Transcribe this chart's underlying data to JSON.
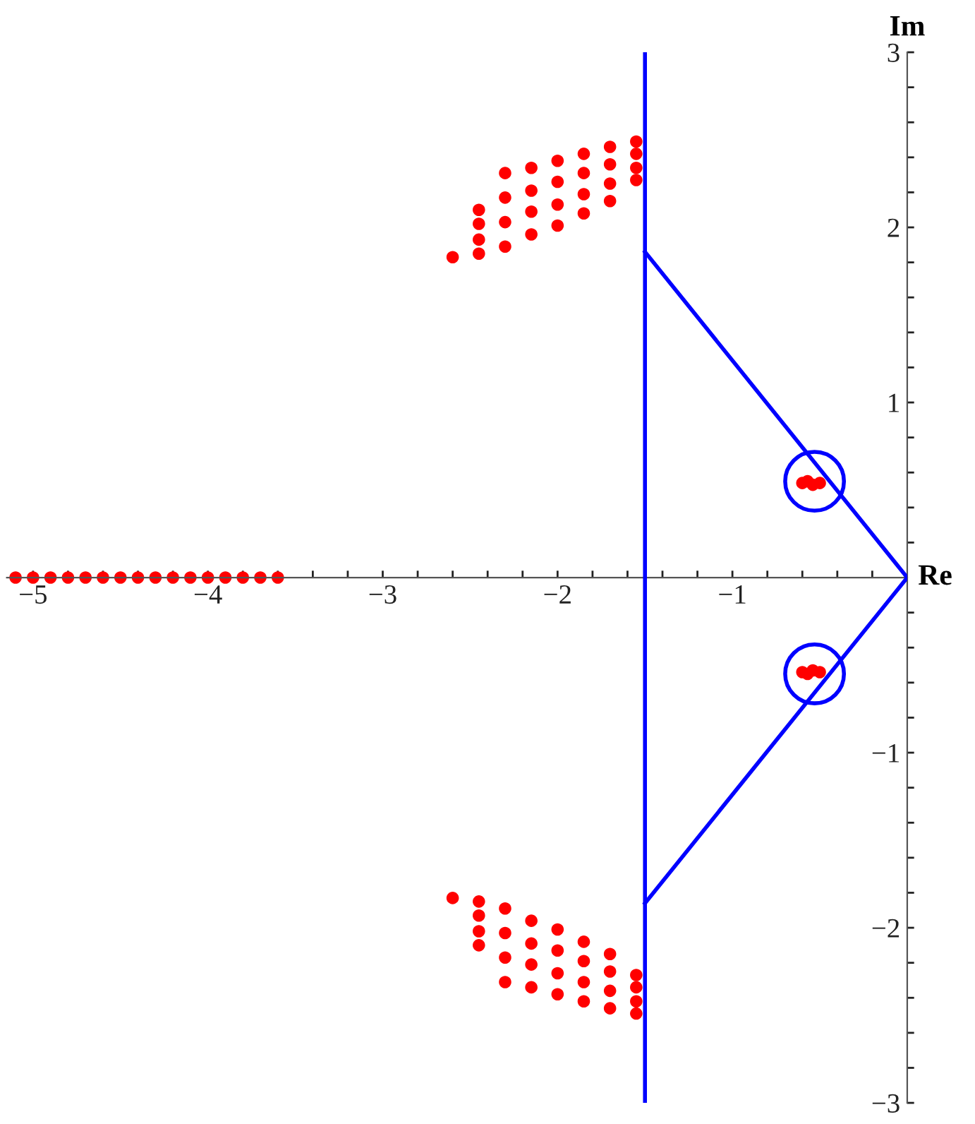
{
  "chart_data": {
    "type": "scatter",
    "xlabel": "Re",
    "ylabel": "Im",
    "xlim": [
      -5.15,
      0
    ],
    "ylim": [
      -3,
      3
    ],
    "xticks": [
      {
        "value": -5,
        "label": "−5"
      },
      {
        "value": -4.8,
        "label": null
      },
      {
        "value": -4.6,
        "label": null
      },
      {
        "value": -4.4,
        "label": null
      },
      {
        "value": -4.2,
        "label": null
      },
      {
        "value": -4,
        "label": "−4"
      },
      {
        "value": -3.8,
        "label": null
      },
      {
        "value": -3.6,
        "label": null
      },
      {
        "value": -3.4,
        "label": null
      },
      {
        "value": -3.2,
        "label": null
      },
      {
        "value": -3,
        "label": "−3"
      },
      {
        "value": -2.8,
        "label": null
      },
      {
        "value": -2.6,
        "label": null
      },
      {
        "value": -2.4,
        "label": null
      },
      {
        "value": -2.2,
        "label": null
      },
      {
        "value": -2,
        "label": "−2"
      },
      {
        "value": -1.8,
        "label": null
      },
      {
        "value": -1.6,
        "label": null
      },
      {
        "value": -1.4,
        "label": null
      },
      {
        "value": -1.2,
        "label": null
      },
      {
        "value": -1,
        "label": "−1"
      },
      {
        "value": -0.8,
        "label": null
      },
      {
        "value": -0.6,
        "label": null
      },
      {
        "value": -0.4,
        "label": null
      },
      {
        "value": -0.2,
        "label": null
      }
    ],
    "yticks": [
      {
        "value": -3,
        "label": "−3"
      },
      {
        "value": -2.8,
        "label": null
      },
      {
        "value": -2.6,
        "label": null
      },
      {
        "value": -2.4,
        "label": null
      },
      {
        "value": -2.2,
        "label": null
      },
      {
        "value": -2,
        "label": "−2"
      },
      {
        "value": -1.8,
        "label": null
      },
      {
        "value": -1.6,
        "label": null
      },
      {
        "value": -1.4,
        "label": null
      },
      {
        "value": -1.2,
        "label": null
      },
      {
        "value": -1,
        "label": "−1"
      },
      {
        "value": -0.8,
        "label": null
      },
      {
        "value": -0.6,
        "label": null
      },
      {
        "value": -0.4,
        "label": null
      },
      {
        "value": -0.2,
        "label": null
      },
      {
        "value": 0.2,
        "label": null
      },
      {
        "value": 0.4,
        "label": null
      },
      {
        "value": 0.6,
        "label": null
      },
      {
        "value": 0.8,
        "label": null
      },
      {
        "value": 1,
        "label": "1"
      },
      {
        "value": 1.2,
        "label": null
      },
      {
        "value": 1.4,
        "label": null
      },
      {
        "value": 1.6,
        "label": null
      },
      {
        "value": 1.8,
        "label": null
      },
      {
        "value": 2,
        "label": "2"
      },
      {
        "value": 2.2,
        "label": null
      },
      {
        "value": 2.4,
        "label": null
      },
      {
        "value": 2.6,
        "label": null
      },
      {
        "value": 2.8,
        "label": null
      },
      {
        "value": 3,
        "label": "3"
      }
    ],
    "grid": false,
    "series": [
      {
        "type": "line",
        "color": "#0000ff",
        "x": [
          -1.5,
          -1.5
        ],
        "values": [
          -3,
          3
        ]
      },
      {
        "type": "line",
        "color": "#0000ff",
        "x": [
          -1.5,
          0,
          -1.5
        ],
        "values": [
          1.86,
          0,
          -1.86
        ]
      },
      {
        "type": "bubble",
        "color": "#0000ff",
        "x": [
          -0.53,
          -0.53
        ],
        "values": [
          0.55,
          -0.55
        ],
        "sizes": [
          1,
          1
        ]
      },
      {
        "color": "#ff0000",
        "x": [
          -2.6,
          -2.45,
          -2.45,
          -2.45,
          -2.45,
          -2.3,
          -2.3,
          -2.3,
          -2.3,
          -2.15,
          -2.15,
          -2.15,
          -2.15,
          -2.0,
          -2.0,
          -2.0,
          -2.0,
          -1.85,
          -1.85,
          -1.85,
          -1.85,
          -1.7,
          -1.7,
          -1.7,
          -1.7,
          -1.55,
          -1.55,
          -1.55,
          -1.55
        ],
        "values": [
          1.83,
          1.85,
          1.93,
          2.02,
          2.1,
          1.89,
          2.03,
          2.17,
          2.31,
          1.96,
          2.09,
          2.21,
          2.34,
          2.01,
          2.13,
          2.26,
          2.38,
          2.08,
          2.19,
          2.31,
          2.42,
          2.15,
          2.25,
          2.36,
          2.46,
          2.27,
          2.34,
          2.42,
          2.49
        ]
      },
      {
        "color": "#ff0000",
        "x": [
          -2.6,
          -2.45,
          -2.45,
          -2.45,
          -2.45,
          -2.3,
          -2.3,
          -2.3,
          -2.3,
          -2.15,
          -2.15,
          -2.15,
          -2.15,
          -2.0,
          -2.0,
          -2.0,
          -2.0,
          -1.85,
          -1.85,
          -1.85,
          -1.85,
          -1.7,
          -1.7,
          -1.7,
          -1.7,
          -1.55,
          -1.55,
          -1.55,
          -1.55
        ],
        "values": [
          -1.83,
          -1.85,
          -1.93,
          -2.02,
          -2.1,
          -1.89,
          -2.03,
          -2.17,
          -2.31,
          -1.96,
          -2.09,
          -2.21,
          -2.34,
          -2.01,
          -2.13,
          -2.26,
          -2.38,
          -2.08,
          -2.19,
          -2.31,
          -2.42,
          -2.15,
          -2.25,
          -2.36,
          -2.46,
          -2.27,
          -2.34,
          -2.42,
          -2.49
        ]
      },
      {
        "color": "#ff0000",
        "x": [
          -0.6,
          -0.57,
          -0.54,
          -0.5,
          -0.6,
          -0.57,
          -0.54,
          -0.5
        ],
        "values": [
          0.54,
          0.55,
          0.53,
          0.54,
          -0.54,
          -0.55,
          -0.53,
          -0.54
        ]
      },
      {
        "color": "#ff0000",
        "x": [
          -5.1,
          -5.0,
          -4.9,
          -4.8,
          -4.7,
          -4.6,
          -4.5,
          -4.4,
          -4.3,
          -4.2,
          -4.1,
          -4.0,
          -3.9,
          -3.8,
          -3.7,
          -3.6
        ],
        "values": [
          0,
          0,
          0,
          0,
          0,
          0,
          0,
          0,
          0,
          0,
          0,
          0,
          0,
          0,
          0,
          0
        ]
      }
    ]
  }
}
